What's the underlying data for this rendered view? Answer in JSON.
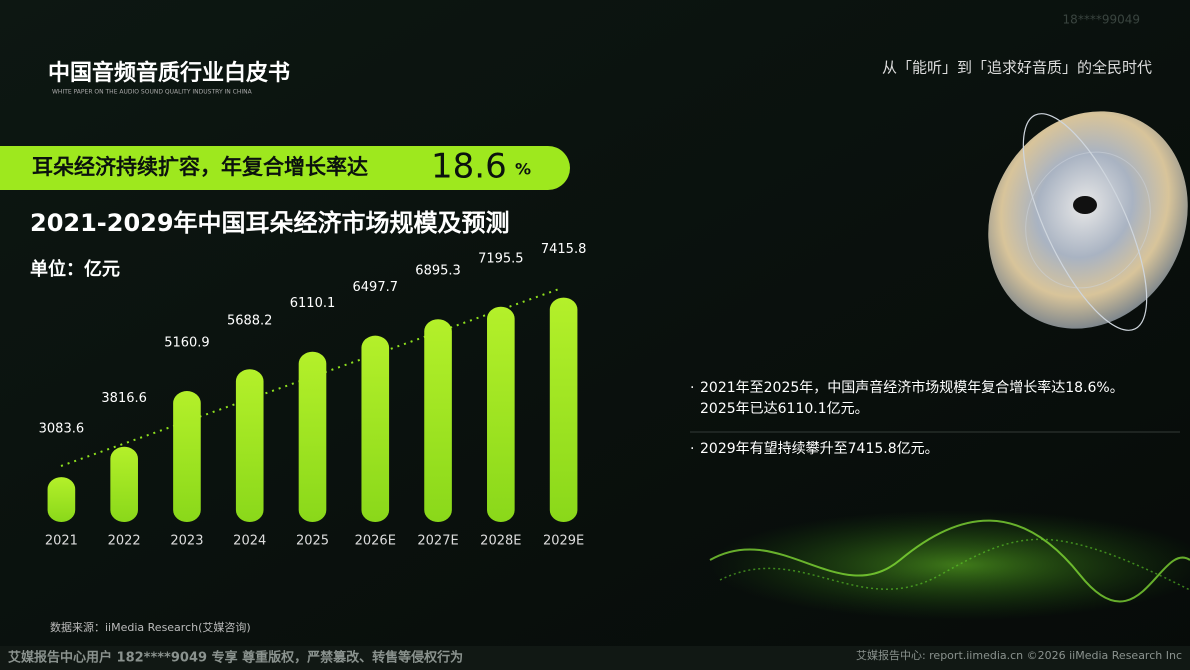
{
  "header": {
    "title": "中国音频音质行业白皮书",
    "subtitle": "WHITE PAPER ON THE AUDIO SOUND QUALITY INDUSTRY IN CHINA",
    "tagline": "从「能听」到「追求好音质」的全民时代",
    "watermark": "18****99049"
  },
  "banner": {
    "text": "耳朵经济持续扩容，年复合增长率达",
    "rate": "18.6",
    "unit": "%"
  },
  "chart_data": {
    "type": "bar",
    "title": "2021-2029年中国耳朵经济市场规模及预测",
    "unit_label": "单位：亿元",
    "categories": [
      "2021",
      "2022",
      "2023",
      "2024",
      "2025",
      "2026E",
      "2027E",
      "2028E",
      "2029E"
    ],
    "values": [
      3083.6,
      3816.6,
      5160.9,
      5688.2,
      6110.1,
      6497.7,
      6895.3,
      7195.5,
      7415.8
    ],
    "color": "#9ee81e",
    "ylim": [
      2000,
      7600
    ]
  },
  "notes": [
    [
      "2021年至2025年，中国声音经济市场规模年复合增长率达18.6%。",
      "2025年已达6110.1亿元。"
    ],
    [
      "2029年有望持续攀升至7415.8亿元。"
    ]
  ],
  "source": "数据来源：iiMedia Research(艾媒咨询)",
  "footer": {
    "left": "艾媒报告中心用户 182****9049 专享 尊重版权，严禁篡改、转售等侵权行为",
    "right": "艾媒报告中心: report.iimedia.cn  ©2026  iiMedia Research  Inc"
  }
}
